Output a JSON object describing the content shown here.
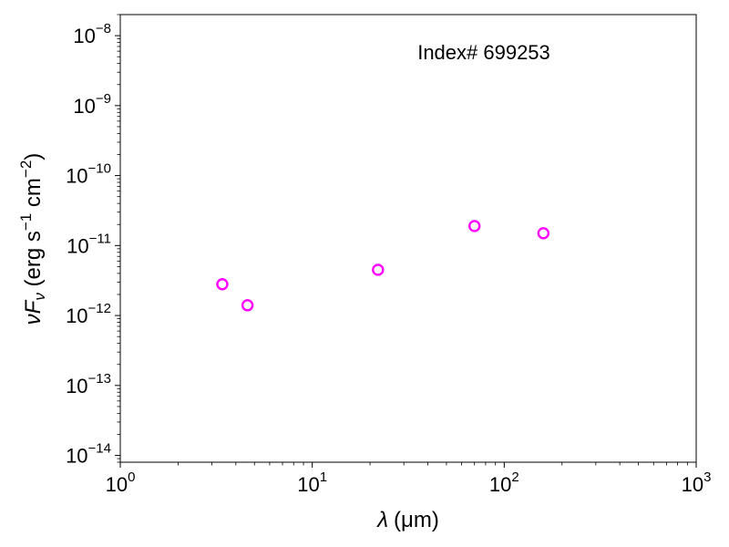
{
  "chart_data": {
    "type": "scatter",
    "annotation": "Index# 699253",
    "xlabel": {
      "symbol": "λ",
      "unit": "(μm)"
    },
    "ylabel": {
      "main": "νF",
      "sub": "ν",
      "unit_open": " (erg s",
      "exp1": "−1",
      "unit_mid": " cm",
      "exp2": "−2",
      "unit_close": ")"
    },
    "xscale": "log",
    "yscale": "log",
    "xlim": [
      1,
      1000
    ],
    "ylim": [
      8e-15,
      2e-08
    ],
    "x_ticks": [
      {
        "base": "10",
        "exp": "0",
        "value": 1
      },
      {
        "base": "10",
        "exp": "1",
        "value": 10
      },
      {
        "base": "10",
        "exp": "2",
        "value": 100
      },
      {
        "base": "10",
        "exp": "3",
        "value": 1000
      }
    ],
    "y_ticks": [
      {
        "base": "10",
        "exp": "−14",
        "value": 1e-14
      },
      {
        "base": "10",
        "exp": "−13",
        "value": 1e-13
      },
      {
        "base": "10",
        "exp": "−12",
        "value": 1e-12
      },
      {
        "base": "10",
        "exp": "−11",
        "value": 1e-11
      },
      {
        "base": "10",
        "exp": "−10",
        "value": 1e-10
      },
      {
        "base": "10",
        "exp": "−9",
        "value": 1e-09
      },
      {
        "base": "10",
        "exp": "−8",
        "value": 1e-08
      }
    ],
    "grid": false,
    "marker": {
      "shape": "open-circle",
      "color": "#ff00ff"
    },
    "points": [
      {
        "x": 3.4,
        "y": 2.8e-12
      },
      {
        "x": 4.6,
        "y": 1.4e-12
      },
      {
        "x": 22,
        "y": 4.5e-12
      },
      {
        "x": 70,
        "y": 1.9e-11
      },
      {
        "x": 160,
        "y": 1.5e-11
      }
    ]
  }
}
